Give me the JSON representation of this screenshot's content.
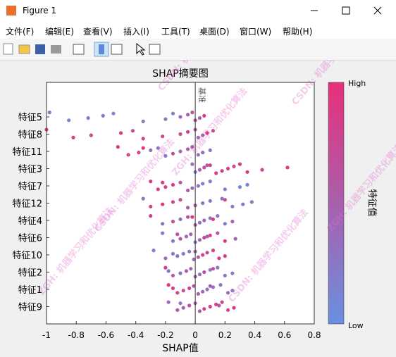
{
  "window": {
    "title": "Figure 1",
    "menus": [
      "文件(F)",
      "编辑(E)",
      "查看(V)",
      "插入(I)",
      "工具(T)",
      "桌面(D)",
      "窗口(W)",
      "帮助(H)"
    ],
    "watermarks": [
      "ZGH: 机器学习和优化算法",
      "CSDN: 机器学习和优化算法"
    ]
  },
  "chart_data": {
    "type": "beeswarm",
    "title": "SHAP摘要图",
    "x_label": "SHAP值",
    "baseline_label": "基准",
    "categories": [
      "特征5",
      "特征8",
      "特征11",
      "特征3",
      "特征7",
      "特征12",
      "特征4",
      "特征6",
      "特征10",
      "特征2",
      "特征1",
      "特征9"
    ],
    "xlim": [
      -1,
      0.8
    ],
    "xticks": [
      -1,
      -0.8,
      -0.6,
      -0.4,
      -0.2,
      0,
      0.2,
      0.4,
      0.6,
      0.8
    ],
    "colormap": [
      "#6a8fe0",
      "#e8307a"
    ],
    "colorbar_label": "特征值",
    "colorbar_high": "High",
    "colorbar_low": "Low",
    "shap": [
      [
        -0.98,
        -0.85,
        -0.72,
        -0.62,
        -0.55,
        -0.35,
        -0.2,
        -0.1,
        -0.05,
        -0.02,
        0.0,
        0.03,
        0.06,
        -0.15
      ],
      [
        -1.0,
        -0.82,
        -0.7,
        -0.5,
        -0.42,
        -0.35,
        -0.22,
        -0.1,
        -0.05,
        0.0,
        0.02,
        0.05,
        0.08,
        0.12
      ],
      [
        -0.52,
        -0.45,
        -0.38,
        -0.3,
        -0.25,
        -0.2,
        -0.15,
        -0.1,
        -0.05,
        -0.02,
        0.02,
        0.05,
        0.1,
        -0.35
      ],
      [
        -0.02,
        0.0,
        0.03,
        0.06,
        0.1,
        0.14,
        0.18,
        0.22,
        0.26,
        0.3,
        0.35,
        0.45,
        0.62,
        0.08
      ],
      [
        -0.3,
        -0.25,
        -0.2,
        -0.15,
        -0.1,
        -0.05,
        -0.02,
        0.02,
        0.05,
        0.1,
        0.2,
        0.3,
        0.35,
        -0.22
      ],
      [
        -0.35,
        -0.3,
        -0.22,
        -0.15,
        -0.1,
        -0.05,
        0.0,
        0.05,
        0.1,
        0.18,
        0.25,
        0.32,
        0.38,
        0.2
      ],
      [
        -0.3,
        -0.22,
        -0.15,
        -0.1,
        -0.05,
        0.0,
        0.03,
        0.06,
        0.1,
        0.15,
        0.2,
        0.25,
        0.12,
        -0.02
      ],
      [
        -0.22,
        -0.15,
        -0.1,
        -0.06,
        -0.03,
        0.0,
        0.03,
        0.06,
        0.1,
        0.15,
        0.2,
        0.27,
        0.08,
        -0.12
      ],
      [
        -0.28,
        -0.2,
        -0.12,
        -0.08,
        -0.04,
        -0.01,
        0.02,
        0.05,
        0.08,
        0.12,
        0.16,
        0.2,
        -0.15,
        0.0
      ],
      [
        -0.2,
        -0.15,
        -0.1,
        -0.06,
        -0.03,
        0.0,
        0.03,
        0.06,
        0.1,
        0.15,
        0.2,
        0.25,
        -0.18,
        0.12
      ],
      [
        -0.18,
        -0.12,
        -0.08,
        -0.04,
        -0.01,
        0.02,
        0.05,
        0.08,
        0.12,
        0.17,
        0.22,
        0.25,
        -0.15,
        0.1
      ],
      [
        -0.18,
        -0.12,
        -0.08,
        -0.04,
        0.0,
        0.03,
        0.06,
        0.1,
        0.14,
        0.18,
        0.22,
        0.26,
        0.16,
        -0.1
      ]
    ],
    "feature_value": [
      [
        0.3,
        0.1,
        0.15,
        0.2,
        0.1,
        0.25,
        0.3,
        0.4,
        0.5,
        0.6,
        0.7,
        0.5,
        0.8,
        0.2
      ],
      [
        0.9,
        0.85,
        0.8,
        0.9,
        0.75,
        0.8,
        0.85,
        0.7,
        0.8,
        0.6,
        0.4,
        0.5,
        0.9,
        0.7
      ],
      [
        0.9,
        0.85,
        0.8,
        0.3,
        0.25,
        0.2,
        0.7,
        0.4,
        0.5,
        0.6,
        0.3,
        0.4,
        0.2,
        0.95
      ],
      [
        0.3,
        0.2,
        0.5,
        0.7,
        0.8,
        0.9,
        0.85,
        0.9,
        0.8,
        0.9,
        0.85,
        0.8,
        0.9,
        0.6
      ],
      [
        0.9,
        0.85,
        0.8,
        0.9,
        0.6,
        0.5,
        0.4,
        0.3,
        0.2,
        0.3,
        0.2,
        0.1,
        0.15,
        0.9
      ],
      [
        0.3,
        0.85,
        0.9,
        0.8,
        0.7,
        0.5,
        0.5,
        0.2,
        0.3,
        0.25,
        0.2,
        0.15,
        0.3,
        0.8
      ],
      [
        0.8,
        0.3,
        0.7,
        0.4,
        0.6,
        0.5,
        0.3,
        0.4,
        0.35,
        0.3,
        0.2,
        0.5,
        0.8,
        0.9
      ],
      [
        0.2,
        0.3,
        0.6,
        0.4,
        0.5,
        0.3,
        0.35,
        0.7,
        0.8,
        0.6,
        0.9,
        0.4,
        0.5,
        0.7
      ],
      [
        0.2,
        0.4,
        0.3,
        0.2,
        0.3,
        0.35,
        0.6,
        0.8,
        0.7,
        0.85,
        0.9,
        0.8,
        0.25,
        0.5
      ],
      [
        0.8,
        0.6,
        0.3,
        0.5,
        0.4,
        0.5,
        0.3,
        0.6,
        0.2,
        0.3,
        0.25,
        0.2,
        0.3,
        0.7
      ],
      [
        0.9,
        0.85,
        0.7,
        0.8,
        0.6,
        0.5,
        0.4,
        0.3,
        0.35,
        0.2,
        0.3,
        0.25,
        0.85,
        0.5
      ],
      [
        0.4,
        0.6,
        0.5,
        0.7,
        0.6,
        0.5,
        0.8,
        0.85,
        0.9,
        0.7,
        0.8,
        0.9,
        0.6,
        0.3
      ]
    ]
  }
}
